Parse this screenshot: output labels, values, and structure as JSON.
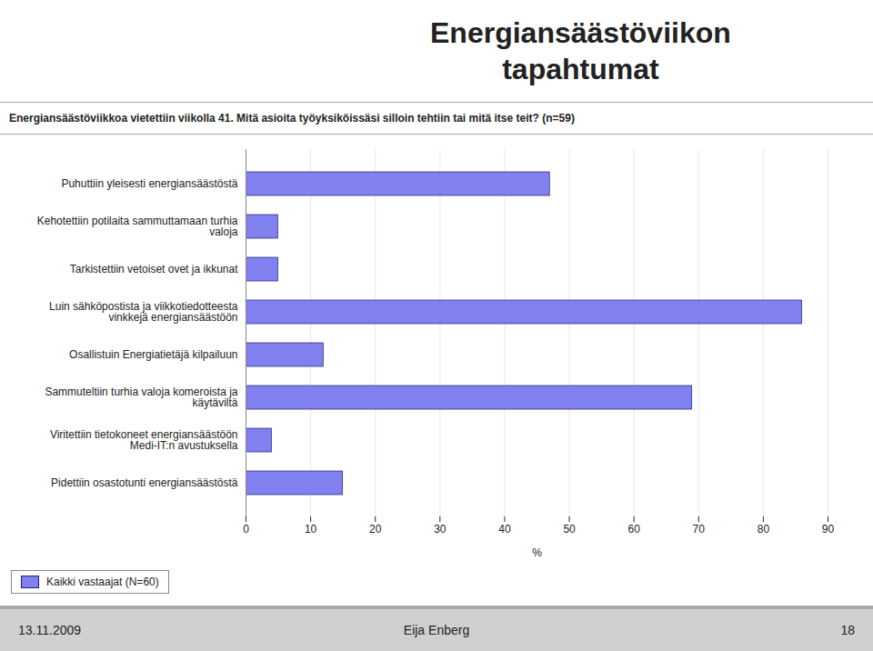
{
  "chart_data": {
    "type": "bar",
    "orientation": "horizontal",
    "title": "Energiansäästöviikon\ntapahtumat",
    "subtitle": "Energiansäästöviikkoa vietettiin viikolla 41. Mitä asioita työyksiköissäsi silloin tehtiin tai mitä itse teit? (n=59)",
    "categories": [
      "Puhuttiin yleisesti energiansäästöstä",
      "Kehotettiin potilaita sammuttamaan turhia\nvaloja",
      "Tarkistettiin vetoiset ovet ja ikkunat",
      "Luin sähköpostista ja viikkotiedotteesta\nvinkkejä energiansäästöön",
      "Osallistuin Energiatietäjä kilpailuun",
      "Sammuteltiin turhia valoja komeroista ja\nkäytäviltä",
      "Viritettiin tietokoneet energiansäästöön\nMedi-IT:n avustuksella",
      "Pidettiin osastotunti energiansäästöstä"
    ],
    "series": [
      {
        "name": "Kaikki vastaajat (N=60)",
        "color": "#8080ee",
        "values": [
          47,
          5,
          5,
          86,
          12,
          69,
          4,
          15
        ]
      }
    ],
    "xlabel": "%",
    "xlim": [
      0,
      90
    ],
    "xticks": [
      0,
      10,
      20,
      30,
      40,
      50,
      60,
      70,
      80,
      90
    ],
    "grid": true,
    "legend": "lower left",
    "annotations": [
      "13.11.2009",
      "Eija Enberg",
      "18"
    ]
  }
}
